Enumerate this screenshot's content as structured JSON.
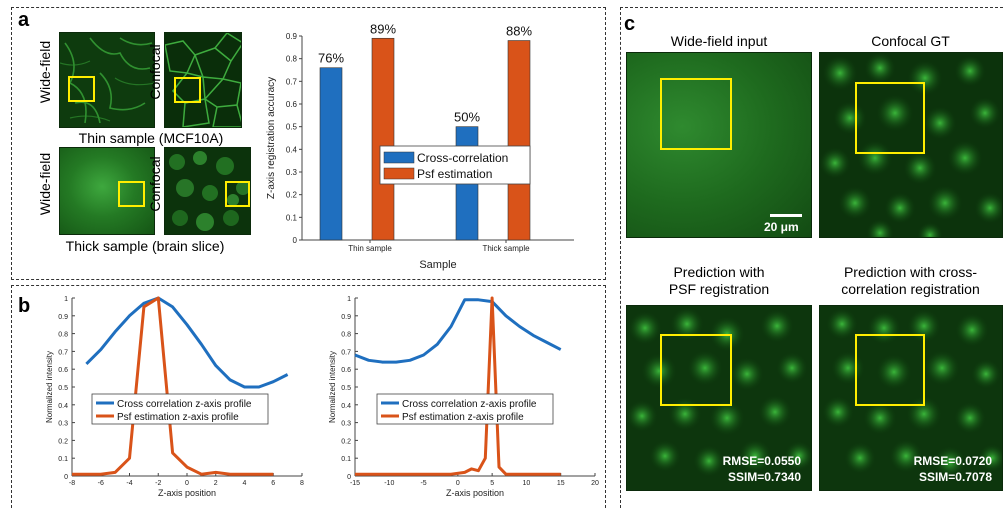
{
  "panel_a": {
    "label": "a",
    "thin_caption": "Thin sample (MCF10A)",
    "thick_caption": "Thick sample (brain slice)",
    "widefield_label": "Wide-field",
    "confocal_label": "Confocal"
  },
  "panel_b": {
    "label": "b"
  },
  "panel_c": {
    "label": "c",
    "titles": {
      "widefield_input": "Wide-field input",
      "confocal_gt": "Confocal GT",
      "pred_psf_line1": "Prediction with",
      "pred_psf_line2": "PSF registration",
      "pred_cc_line1": "Prediction with cross-",
      "pred_cc_line2": "correlation registration"
    },
    "scalebar_label": "20 μm",
    "pred_psf_rmse": "RMSE=0.0550",
    "pred_psf_ssim": "SSIM=0.7340",
    "pred_cc_rmse": "RMSE=0.0720",
    "pred_cc_ssim": "SSIM=0.7078"
  },
  "colors": {
    "cross_correlation": "#1f6fbf",
    "psf_estimation": "#d95319",
    "roi_box": "#ffee00"
  },
  "chart_data": [
    {
      "type": "bar",
      "categories": [
        "Thin sample",
        "Thick sample"
      ],
      "series": [
        {
          "name": "Cross-correlation",
          "values": [
            0.76,
            0.5
          ]
        },
        {
          "name": "Psf estimation",
          "values": [
            0.89,
            0.88
          ]
        }
      ],
      "data_labels": [
        [
          "76%",
          "89%"
        ],
        [
          "50%",
          "88%"
        ]
      ],
      "xlabel": "Sample",
      "ylabel": "Z-axis registration accuracy",
      "ylim": [
        0,
        0.9
      ],
      "yticks": [
        0,
        0.1,
        0.2,
        0.3,
        0.4,
        0.5,
        0.6,
        0.7,
        0.8,
        0.9
      ],
      "legend_position": "center-right",
      "grid": false
    },
    {
      "type": "line",
      "xlabel": "Z-axis position",
      "ylabel": "Normalized intensity",
      "xlim": [
        -8,
        8
      ],
      "ylim": [
        0,
        1
      ],
      "xticks": [
        -8,
        -6,
        -4,
        -2,
        0,
        2,
        4,
        6,
        8
      ],
      "yticks": [
        0,
        0.1,
        0.2,
        0.3,
        0.4,
        0.5,
        0.6,
        0.7,
        0.8,
        0.9,
        1
      ],
      "series": [
        {
          "name": "Cross correlation z-axis profile",
          "x": [
            -7,
            -6,
            -5,
            -4,
            -3,
            -2,
            -1,
            0,
            1,
            2,
            3,
            4,
            5,
            6,
            7
          ],
          "y": [
            0.63,
            0.71,
            0.81,
            0.9,
            0.97,
            1.0,
            0.95,
            0.85,
            0.74,
            0.62,
            0.54,
            0.5,
            0.5,
            0.53,
            0.57
          ]
        },
        {
          "name": "Psf estimation z-axis profile",
          "x": [
            -8,
            -7,
            -6,
            -5,
            -4,
            -3,
            -2,
            -1,
            0,
            1,
            2,
            3,
            4,
            5,
            6
          ],
          "y": [
            0.01,
            0.01,
            0.01,
            0.02,
            0.1,
            0.95,
            1.0,
            0.13,
            0.05,
            0.01,
            0.02,
            0.01,
            0.01,
            0.01,
            0.01
          ]
        }
      ],
      "legend_position": "center"
    },
    {
      "type": "line",
      "xlabel": "Z-axis position",
      "ylabel": "Normalized intensity",
      "xlim": [
        -15,
        20
      ],
      "ylim": [
        0,
        1
      ],
      "xticks": [
        -15,
        -10,
        -5,
        0,
        5,
        10,
        15,
        20
      ],
      "yticks": [
        0,
        0.1,
        0.2,
        0.3,
        0.4,
        0.5,
        0.6,
        0.7,
        0.8,
        0.9,
        1
      ],
      "series": [
        {
          "name": "Cross correlation z-axis profile",
          "x": [
            -15,
            -13,
            -11,
            -9,
            -7,
            -5,
            -3,
            -1,
            1,
            3,
            5,
            7,
            9,
            11,
            13,
            15
          ],
          "y": [
            0.68,
            0.65,
            0.64,
            0.64,
            0.65,
            0.68,
            0.74,
            0.84,
            0.99,
            0.99,
            0.98,
            0.9,
            0.84,
            0.79,
            0.75,
            0.71
          ]
        },
        {
          "name": "Psf estimation z-axis profile",
          "x": [
            -15,
            -13,
            -11,
            -9,
            -7,
            -5,
            -3,
            -1,
            1,
            2,
            3,
            4,
            5,
            6,
            7,
            9,
            11,
            13,
            15
          ],
          "y": [
            0.01,
            0.01,
            0.01,
            0.01,
            0.01,
            0.01,
            0.01,
            0.01,
            0.02,
            0.04,
            0.03,
            0.1,
            1.0,
            0.05,
            0.01,
            0.01,
            0.01,
            0.01,
            0.01
          ]
        }
      ],
      "legend_position": "center"
    }
  ]
}
